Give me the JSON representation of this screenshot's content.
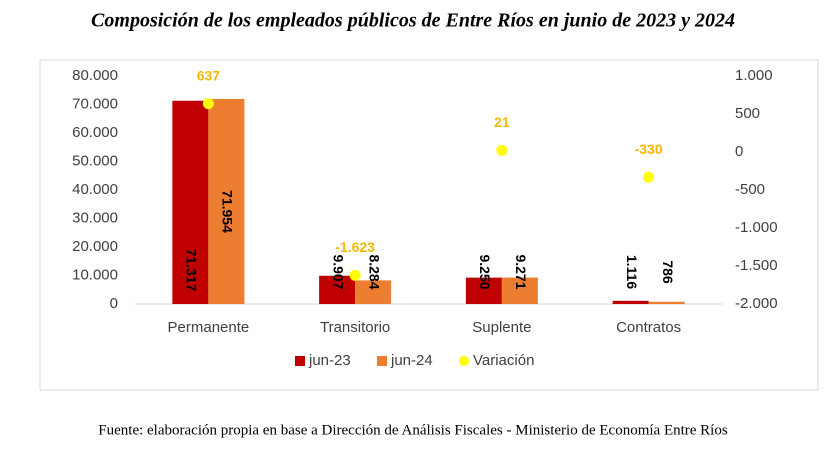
{
  "chart_data": {
    "type": "bar",
    "title": "Composición de los empleados públicos de Entre Ríos en junio de 2023 y 2024",
    "source": "Fuente: elaboración propia en base a Dirección de Análisis Fiscales - Ministerio de Economía Entre Ríos",
    "categories": [
      "Permanente",
      "Transitorio",
      "Suplente",
      "Contratos"
    ],
    "series": [
      {
        "name": "jun-23",
        "color": "#c00000",
        "values": [
          71317,
          9907,
          9250,
          1116
        ],
        "value_labels": [
          "71.317",
          "9.907",
          "9.250",
          "1.116"
        ]
      },
      {
        "name": "jun-24",
        "color": "#ed7d31",
        "values": [
          71954,
          8284,
          9271,
          786
        ],
        "value_labels": [
          "71.954",
          "8.284",
          "9.271",
          "786"
        ]
      },
      {
        "name": "Variación",
        "type": "scatter",
        "axis": "y2",
        "color": "#ffff00",
        "label_color": "#f5b800",
        "values": [
          637,
          -1623,
          21,
          -330
        ],
        "value_labels": [
          "637",
          "-1.623",
          "21",
          "-330"
        ]
      }
    ],
    "ylim": [
      0,
      80000
    ],
    "yticks": [
      0,
      {
        "value": 10000,
        "label": "10.000"
      },
      {
        "value": 20000,
        "label": "20.000"
      },
      {
        "value": 30000,
        "label": "30.000"
      },
      {
        "value": 40000,
        "label": "40.000"
      },
      {
        "value": 50000,
        "label": "50.000"
      },
      {
        "value": 60000,
        "label": "60.000"
      },
      {
        "value": 70000,
        "label": "70.000"
      },
      {
        "value": 80000,
        "label": "80.000"
      }
    ],
    "y2lim": [
      -2000,
      1000
    ],
    "y2ticks": [
      {
        "value": -2000,
        "label": "-2.000"
      },
      {
        "value": -1500,
        "label": "-1.500"
      },
      {
        "value": -1000,
        "label": "-1.000"
      },
      -500,
      0,
      500,
      {
        "value": 1000,
        "label": "1.000"
      }
    ],
    "legend": "bottom",
    "grid": false
  }
}
